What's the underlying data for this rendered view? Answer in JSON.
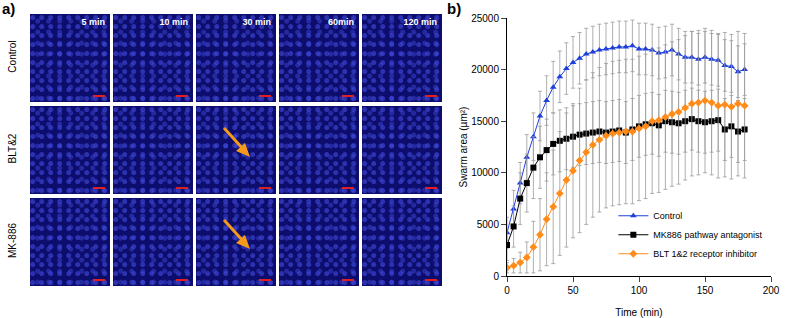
{
  "figure": {
    "panel_a": {
      "label": "a)",
      "columns": [
        "5 min",
        "10 min",
        "30 min",
        "60min",
        "120 min"
      ],
      "rows": [
        "Control",
        "BLT&2",
        "MK-886"
      ]
    },
    "panel_b_label": "b)"
  },
  "chart_data": {
    "type": "scatter",
    "xlabel": "Time (min)",
    "ylabel": "Swarm area (µm²)",
    "x": [
      0,
      5,
      10,
      15,
      20,
      25,
      30,
      35,
      40,
      45,
      50,
      55,
      60,
      65,
      70,
      75,
      80,
      85,
      90,
      95,
      100,
      105,
      110,
      115,
      120,
      125,
      130,
      135,
      140,
      145,
      150,
      155,
      160,
      165,
      170,
      175,
      180
    ],
    "series": [
      {
        "name": "Control",
        "color": "#1f3fdc",
        "marker": "triangle-up",
        "line_style": "solid",
        "values": [
          4200,
          6500,
          9000,
          11500,
          13500,
          15500,
          17000,
          18300,
          19300,
          20100,
          20700,
          21100,
          21500,
          21700,
          21900,
          22000,
          22100,
          22200,
          22200,
          22300,
          22000,
          22000,
          21900,
          21600,
          21700,
          21900,
          21500,
          21200,
          21200,
          21000,
          21200,
          21000,
          20900,
          20400,
          20300,
          19800,
          20000
        ],
        "errors": [
          1500,
          1800,
          2000,
          2200,
          2300,
          2400,
          2400,
          2500,
          2500,
          2500,
          2500,
          2500,
          2500,
          2500,
          2500,
          2500,
          2500,
          2500,
          2500,
          2500,
          2500,
          2500,
          2500,
          2500,
          2500,
          2500,
          2500,
          2500,
          2500,
          2500,
          2500,
          2500,
          2500,
          2500,
          2500,
          2500,
          2500
        ]
      },
      {
        "name": "MK886 pathway antagonist",
        "color": "#000000",
        "marker": "square",
        "line_style": "solid",
        "values": [
          3000,
          4800,
          7500,
          9000,
          10500,
          11500,
          12200,
          12800,
          13100,
          13300,
          13500,
          13700,
          13800,
          13900,
          14000,
          13900,
          14000,
          14100,
          13900,
          14200,
          14500,
          14700,
          14800,
          14600,
          15000,
          14900,
          14800,
          15000,
          15200,
          15000,
          14900,
          15000,
          15100,
          14200,
          14500,
          14000,
          14200
        ],
        "errors": [
          1500,
          2000,
          2500,
          2800,
          3000,
          3000,
          3000,
          3000,
          3000,
          3000,
          3000,
          3000,
          3000,
          3000,
          3000,
          3000,
          3000,
          3000,
          3000,
          3000,
          3000,
          3000,
          3000,
          3000,
          3000,
          3000,
          3000,
          3000,
          3000,
          3000,
          3000,
          3000,
          3000,
          3000,
          3000,
          3000,
          3000
        ]
      },
      {
        "name": "BLT 1&2 receptor inhibitor",
        "color": "#ff8c1a",
        "marker": "diamond",
        "line_style": "solid",
        "values": [
          800,
          1000,
          1300,
          1800,
          2800,
          4000,
          5500,
          6700,
          8000,
          9300,
          10200,
          11200,
          12000,
          12700,
          13200,
          13600,
          13800,
          13900,
          14000,
          14000,
          14300,
          14500,
          15000,
          15100,
          15400,
          15700,
          15900,
          16300,
          16700,
          16800,
          17000,
          16800,
          16500,
          16600,
          16400,
          16700,
          16500
        ],
        "errors": [
          500,
          700,
          1000,
          1500,
          2500,
          3500,
          4500,
          5500,
          6000,
          6500,
          6500,
          7000,
          7000,
          7000,
          7000,
          7000,
          7000,
          7000,
          7000,
          7000,
          7000,
          7000,
          7000,
          7000,
          7000,
          7000,
          7000,
          7000,
          7000,
          7000,
          7000,
          7000,
          7000,
          7000,
          7000,
          7000,
          7000
        ]
      }
    ],
    "xlim": [
      0,
      200
    ],
    "xticks": [
      0,
      50,
      100,
      150,
      200
    ],
    "ylim": [
      0,
      25000
    ],
    "yticks": [
      0,
      5000,
      10000,
      15000,
      20000,
      25000
    ],
    "grid": false,
    "legend": "lower right"
  }
}
